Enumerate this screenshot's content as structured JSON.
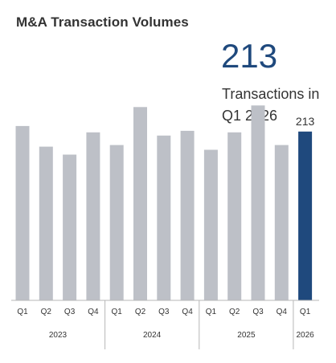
{
  "header": {
    "title": "M&A Transaction Volumes",
    "highlight_value": "213",
    "highlight_caption": "Transactions in Q1 2026"
  },
  "colors": {
    "bar_default": "#bdc0c7",
    "bar_highlight": "#1f497d",
    "axis": "#b7b7b7",
    "text": "#333333"
  },
  "chart_data": {
    "type": "bar",
    "categories": [
      "Q1",
      "Q2",
      "Q3",
      "Q4",
      "Q1",
      "Q2",
      "Q3",
      "Q4",
      "Q1",
      "Q2",
      "Q3",
      "Q4",
      "Q1"
    ],
    "years": [
      {
        "label": "2023",
        "count": 4
      },
      {
        "label": "2024",
        "count": 4
      },
      {
        "label": "2025",
        "count": 4
      },
      {
        "label": "2026",
        "count": 1
      }
    ],
    "values": [
      220,
      194,
      184,
      212,
      196,
      244,
      208,
      214,
      190,
      212,
      246,
      196,
      213
    ],
    "highlight_index": 12,
    "data_labels": [
      {
        "index": 12,
        "text": "213"
      }
    ],
    "ylim": [
      0,
      300
    ],
    "grid": false,
    "legend": false
  }
}
